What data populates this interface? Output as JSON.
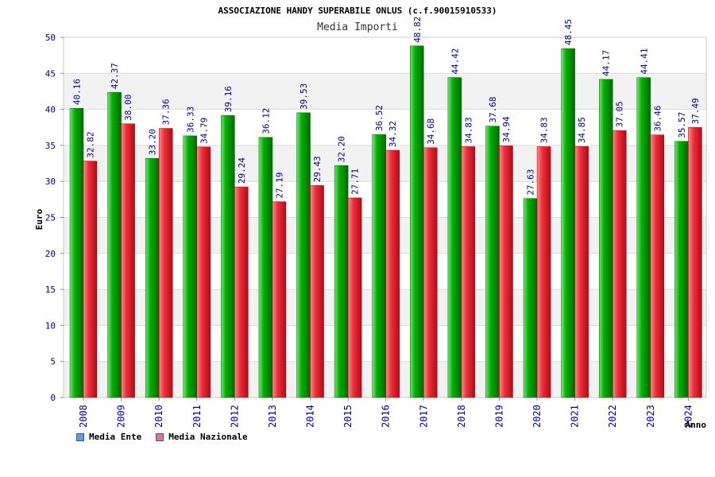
{
  "chart_data": {
    "type": "bar",
    "title": "ASSOCIAZIONE HANDY SUPERABILE ONLUS (c.f.90015910533)",
    "subtitle": "Media Importi",
    "xlabel": "Anno",
    "ylabel": "Euro",
    "ylim": [
      0,
      50
    ],
    "yticks": [
      0,
      5,
      10,
      15,
      20,
      25,
      30,
      35,
      40,
      45,
      50
    ],
    "grid": true,
    "legend_position": "bottom-left",
    "categories": [
      "2008",
      "2009",
      "2010",
      "2011",
      "2012",
      "2013",
      "2014",
      "2015",
      "2016",
      "2017",
      "2018",
      "2019",
      "2020",
      "2021",
      "2022",
      "2023",
      "2024"
    ],
    "series": [
      {
        "name": "Media Ente",
        "color": "#00a000",
        "values": [
          40.16,
          42.37,
          33.2,
          36.33,
          39.16,
          36.12,
          39.53,
          32.2,
          36.52,
          48.82,
          44.42,
          37.68,
          27.63,
          48.45,
          44.17,
          44.41,
          35.57
        ],
        "labels": [
          "40.16",
          "42.37",
          "33.20",
          "36.33",
          "39.16",
          "36.12",
          "39.53",
          "32.20",
          "36.52",
          "48.82",
          "44.42",
          "37.68",
          "27.63",
          "48.45",
          "44.17",
          "44.41",
          "35.57"
        ]
      },
      {
        "name": "Media Nazionale",
        "color": "#e0303a",
        "values": [
          32.82,
          38.0,
          37.36,
          34.79,
          29.24,
          27.19,
          29.43,
          27.71,
          34.32,
          34.68,
          34.83,
          34.94,
          34.83,
          34.85,
          37.05,
          36.46,
          37.49
        ],
        "labels": [
          "32.82",
          "38.00",
          "37.36",
          "34.79",
          "29.24",
          "27.19",
          "29.43",
          "27.71",
          "34.32",
          "34.68",
          "34.83",
          "34.94",
          "34.83",
          "34.85",
          "37.05",
          "36.46",
          "37.49"
        ]
      }
    ]
  },
  "legend": {
    "items": [
      {
        "label": "Media Ente",
        "color": "#5aa0e8"
      },
      {
        "label": "Media Nazionale",
        "color": "#e070a0"
      }
    ]
  }
}
